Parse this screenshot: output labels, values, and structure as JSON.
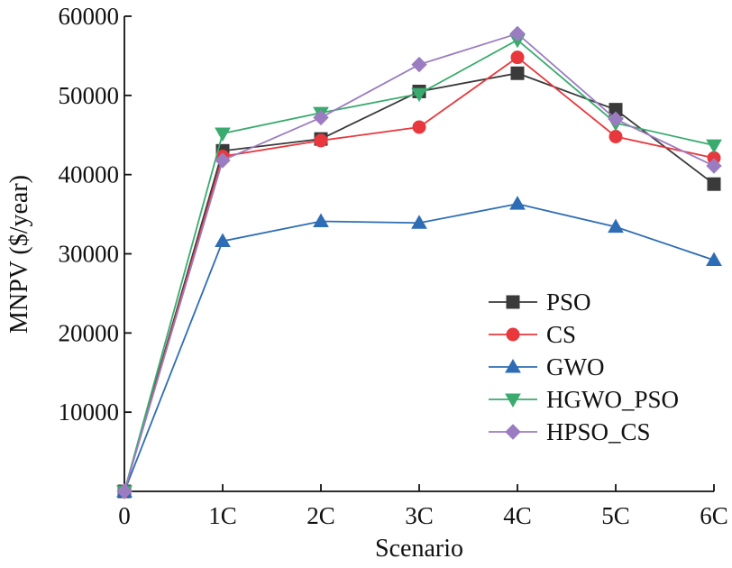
{
  "chart_data": {
    "type": "line",
    "title": "",
    "xlabel": "Scenario",
    "ylabel": "MNPV ($/year)",
    "categories": [
      "0",
      "1C",
      "2C",
      "3C",
      "4C",
      "5C",
      "6C"
    ],
    "ylim": [
      0,
      60000
    ],
    "yticks": [
      10000,
      20000,
      30000,
      40000,
      50000,
      60000
    ],
    "ytick_labels": [
      "10000",
      "20000",
      "30000",
      "40000",
      "50000",
      "60000"
    ],
    "grid": false,
    "legend_position": "lower-right",
    "series": [
      {
        "name": "PSO",
        "color": "#3a3a3a",
        "marker": "square",
        "values": [
          0,
          43000,
          44500,
          50500,
          52800,
          48200,
          38800
        ]
      },
      {
        "name": "CS",
        "color": "#e8383d",
        "marker": "circle",
        "values": [
          0,
          42300,
          44300,
          46000,
          54800,
          44800,
          42100
        ]
      },
      {
        "name": "GWO",
        "color": "#2e6db5",
        "marker": "triangle-up",
        "values": [
          0,
          31600,
          34100,
          33900,
          36300,
          33400,
          29200
        ]
      },
      {
        "name": "HGWO_PSO",
        "color": "#3aaa6e",
        "marker": "triangle-down",
        "values": [
          0,
          45200,
          47800,
          50200,
          57000,
          46500,
          43700
        ]
      },
      {
        "name": "HPSO_CS",
        "color": "#9b7cc0",
        "marker": "diamond",
        "values": [
          0,
          41800,
          47200,
          53900,
          57800,
          47000,
          41100
        ]
      }
    ]
  }
}
